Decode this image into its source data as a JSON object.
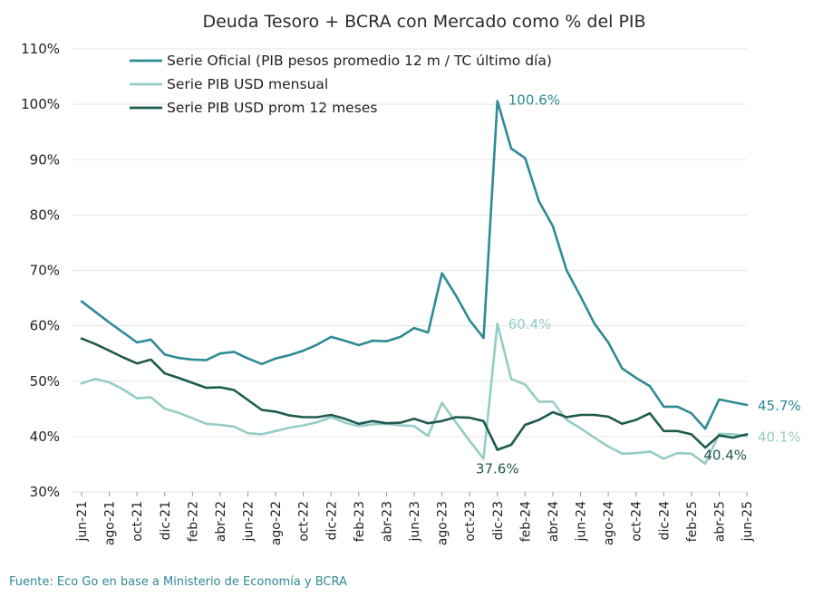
{
  "chart_data": {
    "type": "line",
    "title": "Deuda Tesoro + BCRA con Mercado como % del PIB",
    "source": "Fuente: Eco Go en base a Ministerio de Economía y BCRA",
    "ylim": [
      30,
      110
    ],
    "y_ticks": [
      "30%",
      "40%",
      "50%",
      "60%",
      "70%",
      "80%",
      "90%",
      "100%",
      "110%"
    ],
    "grid": true,
    "legend_position": "top-left",
    "x_tick_labels": [
      "jun-21",
      "ago-21",
      "oct-21",
      "dic-21",
      "feb-22",
      "abr-22",
      "jun-22",
      "ago-22",
      "oct-22",
      "dic-22",
      "feb-23",
      "abr-23",
      "jun-23",
      "ago-23",
      "oct-23",
      "dic-23",
      "feb-24",
      "abr-24",
      "jun-24",
      "ago-24",
      "oct-24",
      "dic-24",
      "feb-25",
      "abr-25",
      "jun-25"
    ],
    "x": [
      "2021-06",
      "2021-07",
      "2021-08",
      "2021-09",
      "2021-10",
      "2021-11",
      "2021-12",
      "2022-01",
      "2022-02",
      "2022-03",
      "2022-04",
      "2022-05",
      "2022-06",
      "2022-07",
      "2022-08",
      "2022-09",
      "2022-10",
      "2022-11",
      "2022-12",
      "2023-01",
      "2023-02",
      "2023-03",
      "2023-04",
      "2023-05",
      "2023-06",
      "2023-07",
      "2023-08",
      "2023-09",
      "2023-10",
      "2023-11",
      "2023-12",
      "2024-01",
      "2024-02",
      "2024-03",
      "2024-04",
      "2024-05",
      "2024-06",
      "2024-07",
      "2024-08",
      "2024-09",
      "2024-10",
      "2024-11",
      "2024-12",
      "2025-01",
      "2025-02",
      "2025-03",
      "2025-04",
      "2025-05",
      "2025-06"
    ],
    "series": [
      {
        "name": "Serie Oficial (PIB pesos promedio 12 m / TC último día)",
        "color": "#2e8a95",
        "values": [
          64.4,
          62.5,
          60.6,
          58.8,
          57.0,
          57.5,
          54.8,
          54.2,
          53.9,
          53.8,
          55.0,
          55.3,
          54.1,
          53.1,
          54.1,
          54.7,
          55.5,
          56.6,
          58.0,
          57.3,
          56.5,
          57.3,
          57.2,
          58.0,
          59.6,
          58.8,
          69.5,
          65.5,
          61.0,
          57.8,
          100.6,
          92.0,
          90.3,
          82.5,
          78.0,
          70.0,
          65.3,
          60.4,
          57.0,
          52.3,
          50.6,
          49.1,
          45.4,
          45.4,
          44.2,
          41.4,
          46.7,
          46.2,
          45.7
        ]
      },
      {
        "name": "Serie PIB USD mensual",
        "color": "#95ccc5",
        "values": [
          49.6,
          50.4,
          49.8,
          48.5,
          46.9,
          47.1,
          45.0,
          44.3,
          43.3,
          42.3,
          42.1,
          41.8,
          40.6,
          40.4,
          41.0,
          41.6,
          42.0,
          42.6,
          43.5,
          42.5,
          41.9,
          42.2,
          42.3,
          42.0,
          41.9,
          40.1,
          46.1,
          42.6,
          39.2,
          36.0,
          60.4,
          50.4,
          49.4,
          46.3,
          46.3,
          43.0,
          41.5,
          39.8,
          38.2,
          36.9,
          37.0,
          37.3,
          36.0,
          37.0,
          36.9,
          35.1,
          40.5,
          40.4,
          40.1
        ]
      },
      {
        "name": "Serie PIB USD prom 12 meses",
        "color": "#1d5a4f",
        "values": [
          57.7,
          56.7,
          55.5,
          54.3,
          53.2,
          53.9,
          51.4,
          50.6,
          49.7,
          48.8,
          48.9,
          48.4,
          46.6,
          44.8,
          44.5,
          43.8,
          43.5,
          43.5,
          43.9,
          43.2,
          42.3,
          42.8,
          42.4,
          42.5,
          43.2,
          42.4,
          42.8,
          43.5,
          43.4,
          42.8,
          37.6,
          38.5,
          42.1,
          43.0,
          44.4,
          43.5,
          43.9,
          43.9,
          43.6,
          42.3,
          43.0,
          44.2,
          41.0,
          41.0,
          40.4,
          38.0,
          40.2,
          39.8,
          40.4
        ]
      }
    ],
    "annotations": [
      {
        "text": "100.6%",
        "series": 0,
        "index": 30
      },
      {
        "text": "60.4%",
        "series": 1,
        "index": 30
      },
      {
        "text": "37.6%",
        "series": 2,
        "index": 30
      },
      {
        "text": "45.7%",
        "series": 0,
        "index": 48
      },
      {
        "text": "40.1%",
        "series": 1,
        "index": 48
      },
      {
        "text": "40.4%",
        "series": 2,
        "index": 48
      }
    ]
  }
}
